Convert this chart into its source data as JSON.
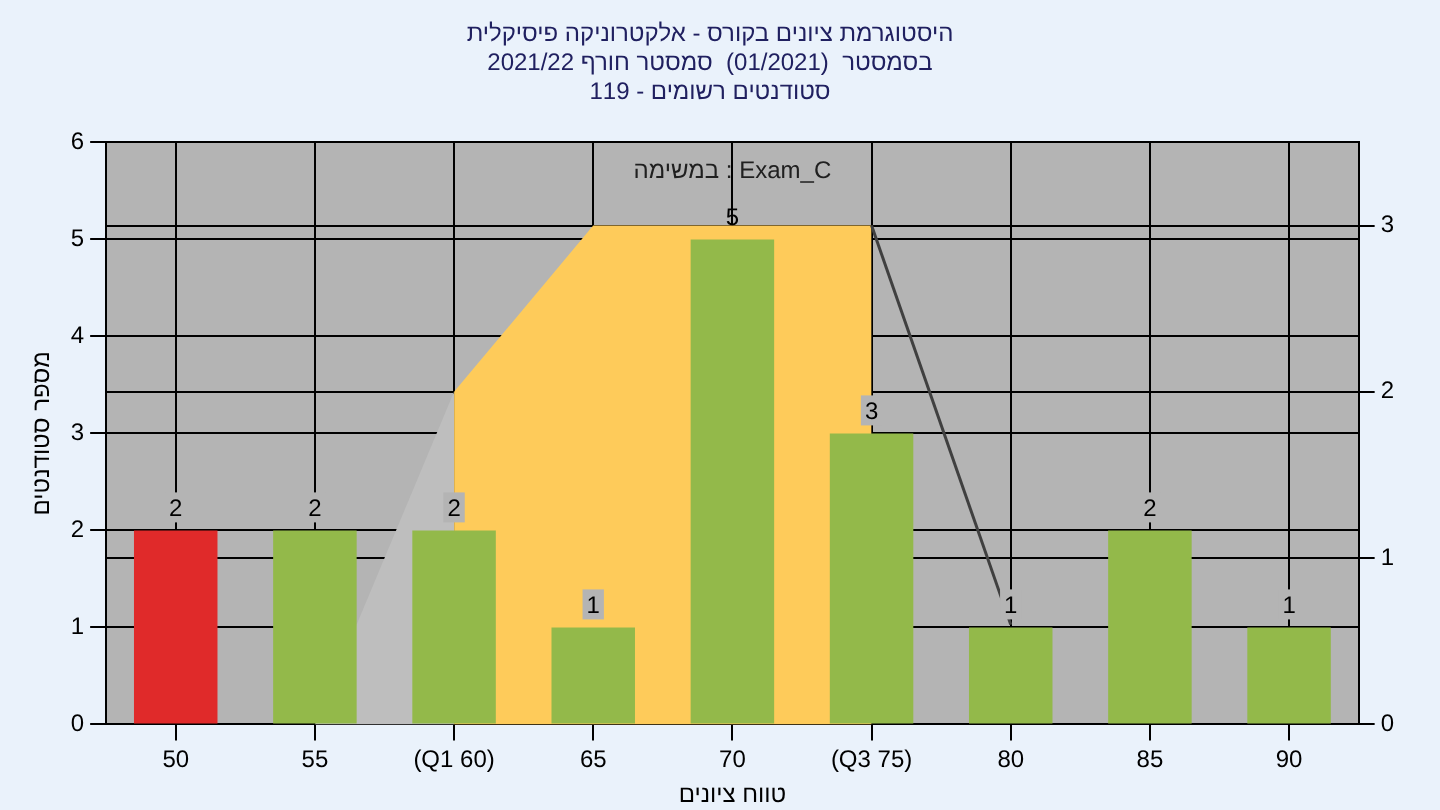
{
  "chart_data": {
    "type": "bar",
    "title": "היסטוגרמת ציונים בקורס - אלקטרוניקה פיסיקלית",
    "subtitle": "בסמסטר  (01/2021)  סמסטר חורף 2021/22\nסטודנטים רשומים - 119",
    "xlabel": "טווח ציונים",
    "ylabel": "מספר סטודנטים",
    "annotations": [
      "במשימה : Exam_C"
    ],
    "categories": [
      "50",
      "55",
      "(Q1 60)",
      "65",
      "70",
      "(Q3 75)",
      "80",
      "85",
      "90"
    ],
    "series": [
      {
        "values": [
          2,
          2,
          2,
          1,
          5,
          3,
          1,
          2,
          1
        ],
        "value_labels": [
          "2",
          "2",
          "2",
          "1",
          "5",
          "3",
          "1",
          "2",
          "1"
        ],
        "colors": [
          "#e02a2a",
          "#93b94a",
          "#93b94a",
          "#93b94a",
          "#93b94a",
          "#93b94a",
          "#93b94a",
          "#93b94a",
          "#93b94a"
        ]
      },
      {
        "type": "area",
        "axis": "y2",
        "color": "#bebebe",
        "values": [
          null,
          0,
          2,
          null,
          null,
          null,
          null,
          null,
          null
        ]
      },
      {
        "type": "area",
        "axis": "y2",
        "color": "#fecb5a",
        "values": [
          null,
          null,
          2,
          3,
          3,
          3,
          null,
          null,
          null
        ]
      },
      {
        "type": "line",
        "axis": "y2",
        "color": "#404040",
        "values": [
          null,
          null,
          null,
          null,
          null,
          3,
          0.6,
          null,
          null
        ]
      }
    ],
    "ylim": [
      0,
      6
    ],
    "yticks": [
      0,
      1,
      2,
      3,
      4,
      5,
      6
    ],
    "y2lim": [
      0,
      3.5
    ],
    "y2ticks": [
      0,
      1,
      2,
      3
    ],
    "grid": true,
    "legend": false
  }
}
